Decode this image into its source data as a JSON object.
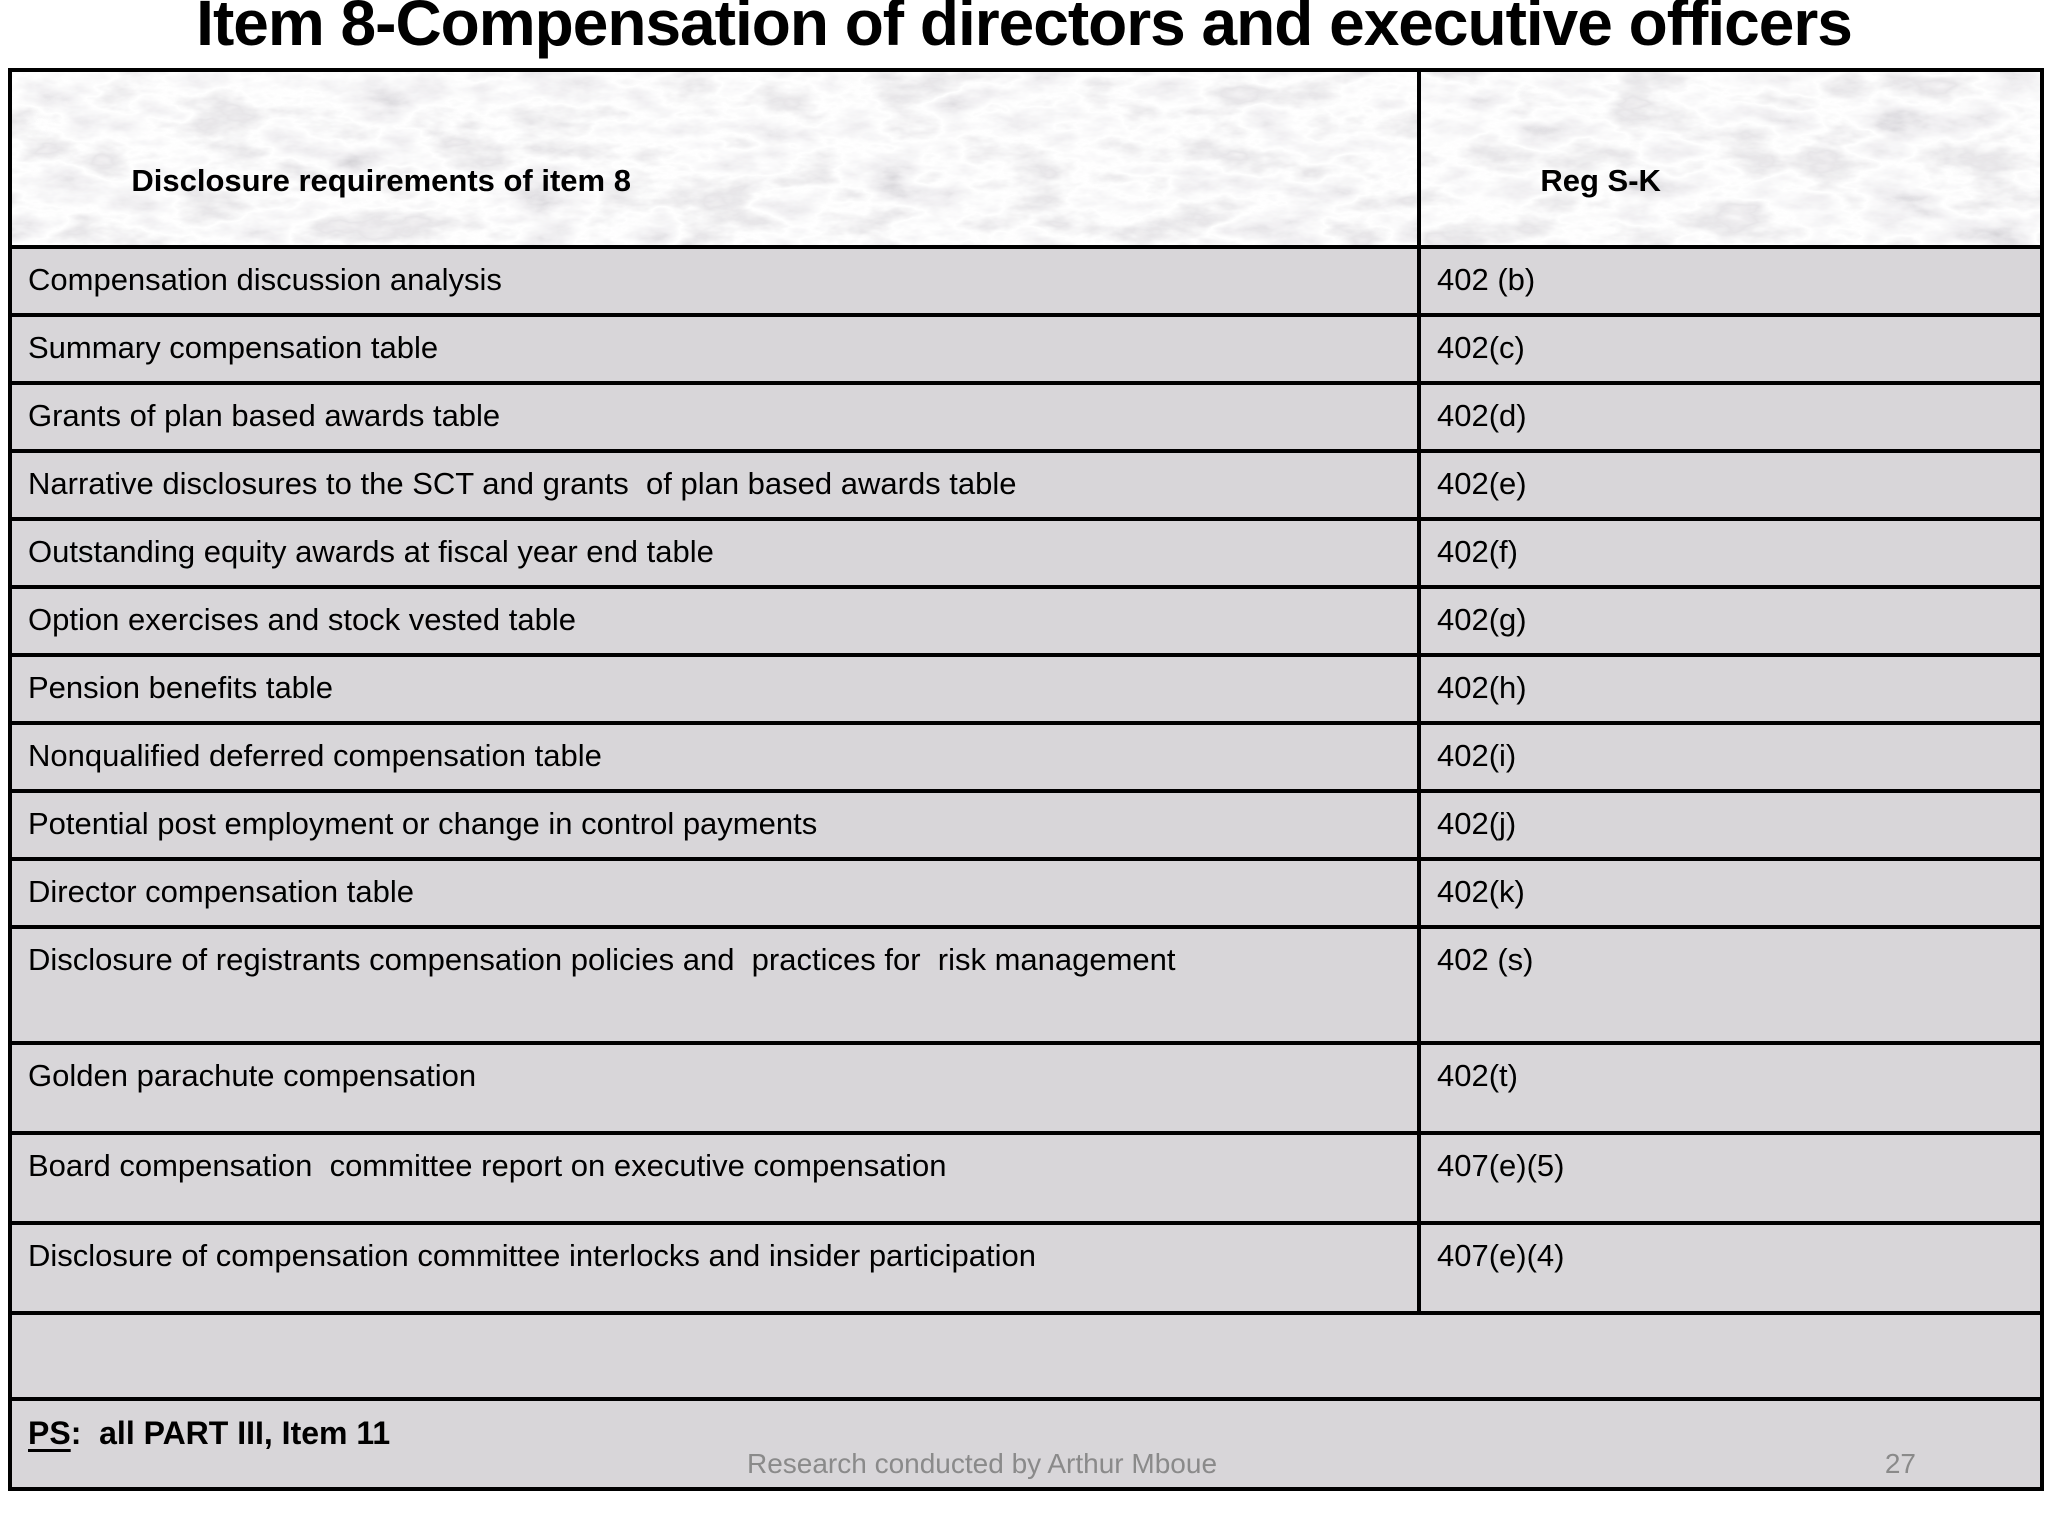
{
  "slide": {
    "title": "Item 8-Compensation of directors and executive officers",
    "footer_text": "Research conducted by Arthur Mboue",
    "page_number": "27"
  },
  "table": {
    "column_headers": [
      "Disclosure requirements of item 8",
      "Reg S-K"
    ],
    "rows": [
      {
        "requirement": "Compensation discussion analysis",
        "reg_sk": "402 (b)"
      },
      {
        "requirement": "Summary compensation table",
        "reg_sk": "402(c)"
      },
      {
        "requirement": "Grants of plan based awards table",
        "reg_sk": "402(d)"
      },
      {
        "requirement": "Narrative disclosures to the SCT and grants  of plan based awards table",
        "reg_sk": "402(e)"
      },
      {
        "requirement": "Outstanding equity awards at fiscal year end table",
        "reg_sk": "402(f)"
      },
      {
        "requirement": "Option exercises and stock vested table",
        "reg_sk": "402(g)"
      },
      {
        "requirement": "Pension benefits table",
        "reg_sk": "402(h)"
      },
      {
        "requirement": "Nonqualified deferred compensation table",
        "reg_sk": "402(i)"
      },
      {
        "requirement": "Potential post employment or change in control payments",
        "reg_sk": "402(j)"
      },
      {
        "requirement": "Director compensation table",
        "reg_sk": "402(k)"
      },
      {
        "requirement": "Disclosure of registrants compensation policies and  practices for  risk management",
        "reg_sk": "402 (s)"
      },
      {
        "requirement": "Golden parachute compensation",
        "reg_sk": "402(t)"
      },
      {
        "requirement": "Board compensation  committee report on executive compensation",
        "reg_sk": "407(e)(5)"
      },
      {
        "requirement": "Disclosure of compensation committee interlocks and insider participation",
        "reg_sk": "407(e)(4)"
      }
    ],
    "ps_label": "PS",
    "ps_rest": ":  all PART III, Item 11"
  },
  "colors": {
    "cell_background": "#d8d6d9",
    "border": "#000000",
    "footer_gray": "#8a8a8a",
    "title": "#000000"
  }
}
